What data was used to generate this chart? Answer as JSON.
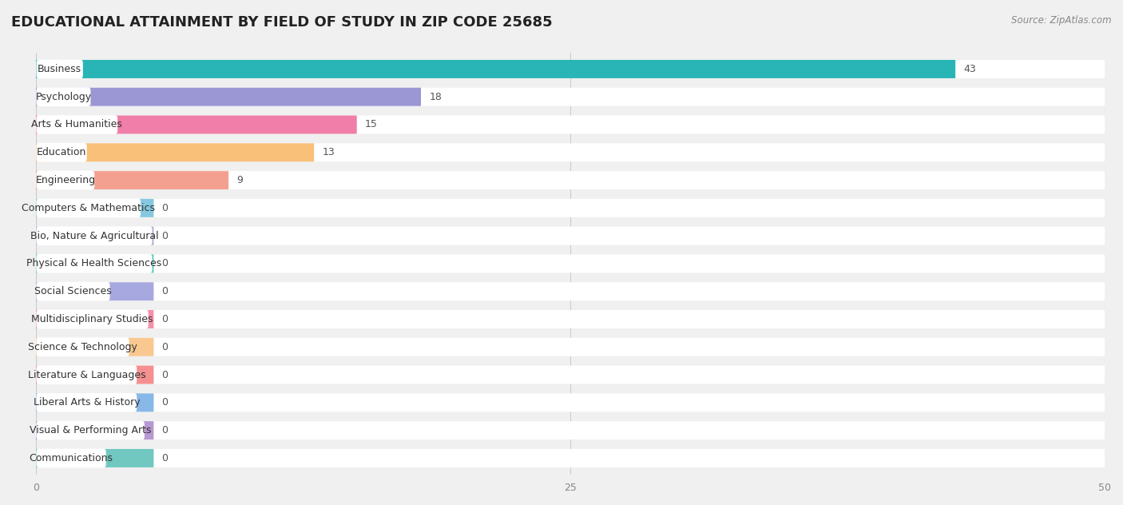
{
  "title": "EDUCATIONAL ATTAINMENT BY FIELD OF STUDY IN ZIP CODE 25685",
  "source": "Source: ZipAtlas.com",
  "categories": [
    "Business",
    "Psychology",
    "Arts & Humanities",
    "Education",
    "Engineering",
    "Computers & Mathematics",
    "Bio, Nature & Agricultural",
    "Physical & Health Sciences",
    "Social Sciences",
    "Multidisciplinary Studies",
    "Science & Technology",
    "Literature & Languages",
    "Liberal Arts & History",
    "Visual & Performing Arts",
    "Communications"
  ],
  "values": [
    43,
    18,
    15,
    13,
    9,
    0,
    0,
    0,
    0,
    0,
    0,
    0,
    0,
    0,
    0
  ],
  "bar_colors": [
    "#29B5B5",
    "#9B96D4",
    "#F07EA8",
    "#F9C07A",
    "#F4A090",
    "#85C8E0",
    "#B8A8D8",
    "#60C8C0",
    "#A8A8E0",
    "#F490A8",
    "#F9C890",
    "#F49090",
    "#88B8E8",
    "#B898D0",
    "#70C8C0"
  ],
  "xlim": [
    0,
    50
  ],
  "xticks": [
    0,
    25,
    50
  ],
  "background_color": "#f0f0f0",
  "row_bg_color": "#ffffff",
  "title_fontsize": 13,
  "label_fontsize": 9,
  "value_fontsize": 9,
  "zero_stub_value": 5.5
}
